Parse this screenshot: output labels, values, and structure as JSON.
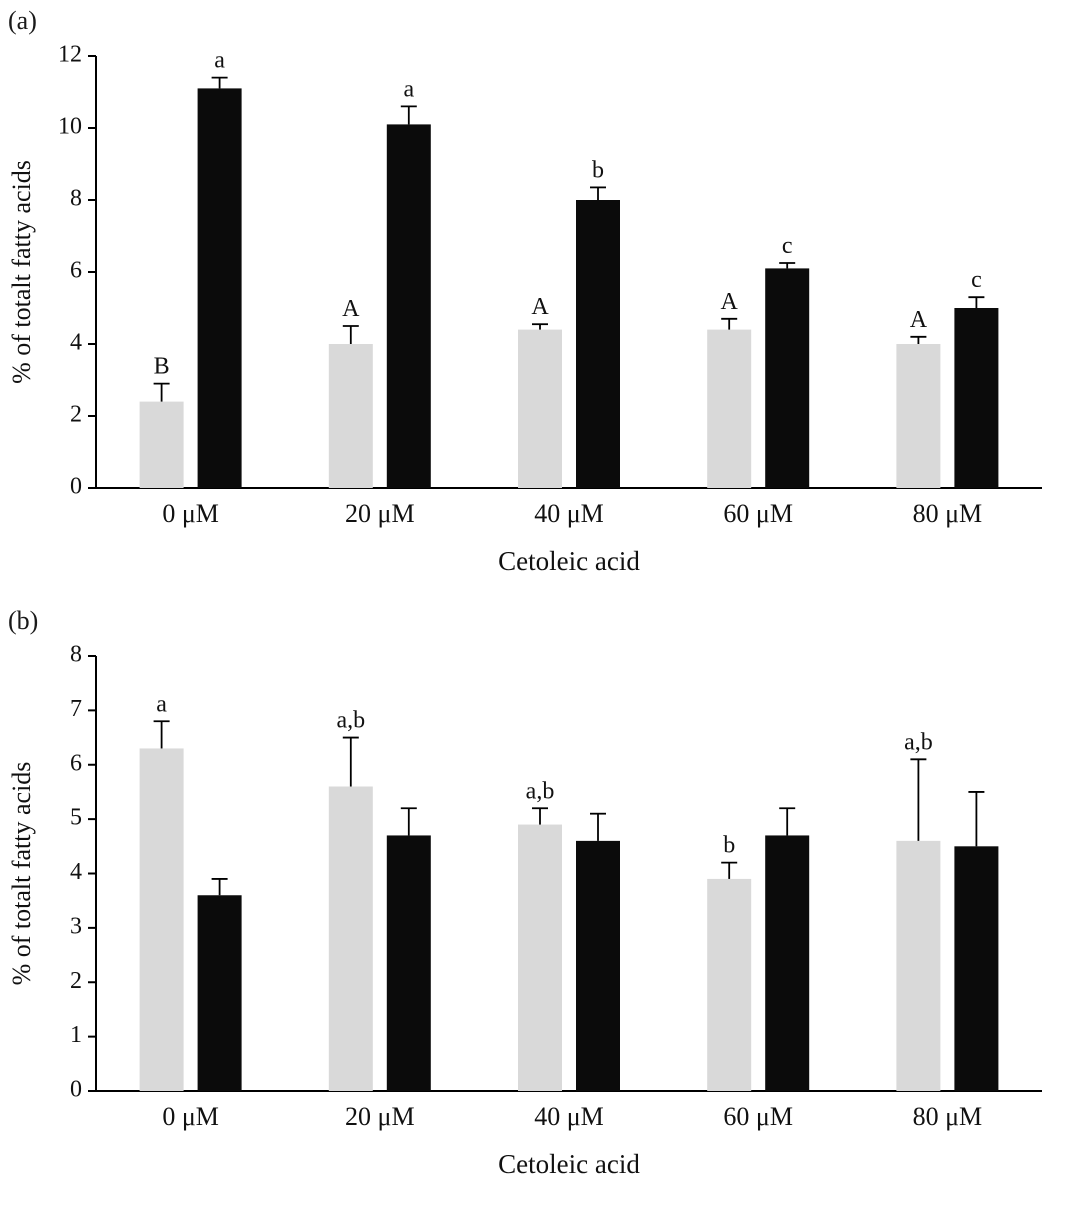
{
  "chart_data": [
    {
      "type": "bar",
      "panel_label": "(a)",
      "title": "",
      "xlabel": "Cetoleic acid",
      "ylabel": "% of totalt fatty acids",
      "ylim": [
        0,
        12
      ],
      "ytick_step": 2,
      "grid": false,
      "legend": "none",
      "categories": [
        "0 μM",
        "20 μM",
        "40 μM",
        "60 μM",
        "80 μM"
      ],
      "series": [
        {
          "name": "series-gray",
          "color": "#d9d9d9",
          "values": [
            2.4,
            4.0,
            4.4,
            4.4,
            4.0
          ],
          "errors": [
            0.5,
            0.5,
            0.15,
            0.3,
            0.2
          ],
          "letters": [
            "B",
            "A",
            "A",
            "A",
            "A"
          ]
        },
        {
          "name": "series-black",
          "color": "#0b0b0b",
          "values": [
            11.1,
            10.1,
            8.0,
            6.1,
            5.0
          ],
          "errors": [
            0.3,
            0.5,
            0.35,
            0.15,
            0.3
          ],
          "letters": [
            "a",
            "a",
            "b",
            "c",
            "c"
          ]
        }
      ]
    },
    {
      "type": "bar",
      "panel_label": "(b)",
      "title": "",
      "xlabel": "Cetoleic acid",
      "ylabel": "% of totalt fatty acids",
      "ylim": [
        0,
        8
      ],
      "ytick_step": 1,
      "grid": false,
      "legend": "none",
      "categories": [
        "0 μM",
        "20 μM",
        "40 μM",
        "60 μM",
        "80 μM"
      ],
      "series": [
        {
          "name": "series-gray",
          "color": "#d9d9d9",
          "values": [
            6.3,
            5.6,
            4.9,
            3.9,
            4.6
          ],
          "errors": [
            0.5,
            0.9,
            0.3,
            0.3,
            1.5
          ],
          "letters": [
            "a",
            "a,b",
            "a,b",
            "b",
            "a,b"
          ]
        },
        {
          "name": "series-black",
          "color": "#0b0b0b",
          "values": [
            3.6,
            4.7,
            4.6,
            4.7,
            4.5
          ],
          "errors": [
            0.3,
            0.5,
            0.5,
            0.5,
            1.0
          ],
          "letters": [
            "",
            "",
            "",
            "",
            ""
          ]
        }
      ]
    }
  ]
}
